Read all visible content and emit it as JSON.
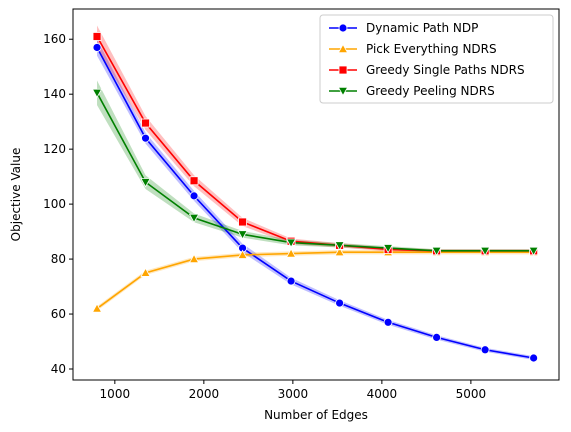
{
  "chart_data": {
    "type": "line",
    "title": "",
    "xlabel": "Number of Edges",
    "ylabel": "Objective Value",
    "xlim": [
      530,
      5990
    ],
    "ylim": [
      36,
      171
    ],
    "xticks": [
      1000,
      2000,
      3000,
      4000,
      5000
    ],
    "yticks": [
      40,
      60,
      80,
      100,
      120,
      140,
      160
    ],
    "grid": false,
    "legend_position": "top-right",
    "x": [
      800,
      1345,
      1890,
      2435,
      2980,
      3525,
      4070,
      4615,
      5160,
      5705
    ],
    "series": [
      {
        "name": "Dynamic Path NDP",
        "color": "#0000ff",
        "marker": "circle",
        "values": [
          157,
          124,
          103,
          84,
          72,
          64,
          57,
          51.5,
          47,
          44
        ],
        "band_halfwidth": [
          3,
          2,
          1.8,
          1.6,
          1.2,
          1,
          0.9,
          0.8,
          0.7,
          0.7
        ]
      },
      {
        "name": "Pick Everything NDRS",
        "color": "#ffa500",
        "marker": "triangle-up",
        "values": [
          62,
          75,
          80,
          81.5,
          82,
          82.5,
          82.5,
          82.5,
          82.5,
          82.5
        ],
        "band_halfwidth": [
          0.8,
          0.8,
          0.8,
          0.8,
          0.8,
          0.8,
          0.8,
          0.8,
          0.8,
          0.8
        ]
      },
      {
        "name": "Greedy Single Paths NDRS",
        "color": "#ff0000",
        "marker": "square",
        "values": [
          161,
          129.5,
          108.5,
          93.5,
          86.5,
          85,
          83.5,
          83,
          83,
          83
        ],
        "band_halfwidth": [
          4,
          2.5,
          2,
          1.5,
          1,
          0.8,
          0.7,
          0.6,
          0.6,
          0.6
        ]
      },
      {
        "name": "Greedy Peeling NDRS",
        "color": "#008000",
        "marker": "triangle-down",
        "values": [
          140.5,
          108,
          95,
          89,
          86,
          85,
          84,
          83,
          83,
          83
        ],
        "band_halfwidth": [
          4.5,
          2.5,
          1.6,
          1.2,
          1,
          0.8,
          0.7,
          0.6,
          0.6,
          0.6
        ]
      }
    ]
  }
}
